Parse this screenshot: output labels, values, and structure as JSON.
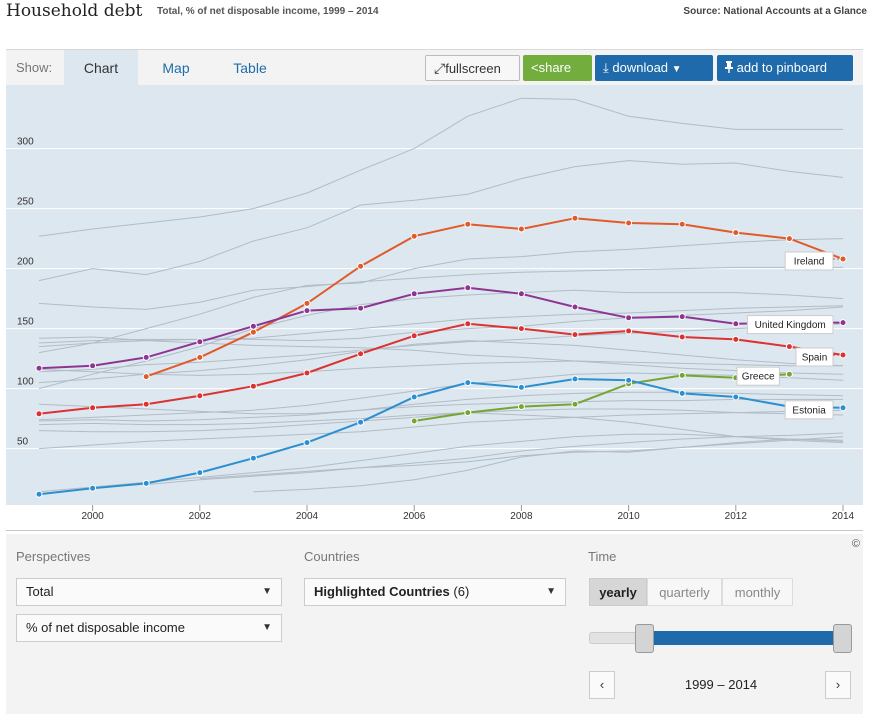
{
  "header": {
    "title": "Household debt",
    "subtitle": "Total, % of net disposable income, 1999 – 2014",
    "source": "Source: National Accounts at a Glance"
  },
  "toolbar": {
    "show_label": "Show:",
    "tabs": [
      "Chart",
      "Map",
      "Table"
    ],
    "active_tab": "Chart",
    "fullscreen_label": "fullscreen",
    "share_label": "share",
    "download_label": "download",
    "pinboard_label": "add to pinboard"
  },
  "chart_data": {
    "type": "line",
    "xlim": [
      1999,
      2014
    ],
    "ylim": [
      3,
      353
    ],
    "x_ticks": [
      2000,
      2002,
      2004,
      2006,
      2008,
      2010,
      2012,
      2014
    ],
    "y_ticks": [
      50,
      100,
      150,
      200,
      250,
      300
    ],
    "grid": true,
    "series": [
      {
        "name": "Ireland",
        "color": "#e05a2a",
        "x": [
          2001,
          2002,
          2003,
          2004,
          2005,
          2006,
          2007,
          2008,
          2009,
          2010,
          2011,
          2012,
          2013,
          2014
        ],
        "values": [
          110,
          126,
          147,
          171,
          202,
          227,
          237,
          233,
          242,
          238,
          237,
          230,
          225,
          208
        ]
      },
      {
        "name": "United Kingdom",
        "color": "#8e3593",
        "x": [
          1999,
          2000,
          2001,
          2002,
          2003,
          2004,
          2005,
          2006,
          2007,
          2008,
          2009,
          2010,
          2011,
          2012,
          2013,
          2014
        ],
        "values": [
          117,
          119,
          126,
          139,
          152,
          165,
          167,
          179,
          184,
          179,
          168,
          159,
          160,
          154,
          155,
          155
        ]
      },
      {
        "name": "Spain",
        "color": "#dc3232",
        "x": [
          1999,
          2000,
          2001,
          2002,
          2003,
          2004,
          2005,
          2006,
          2007,
          2008,
          2009,
          2010,
          2011,
          2012,
          2013,
          2014
        ],
        "values": [
          79,
          84,
          87,
          94,
          102,
          113,
          129,
          144,
          154,
          150,
          145,
          148,
          143,
          141,
          135,
          128
        ]
      },
      {
        "name": "Greece",
        "color": "#77a534",
        "x": [
          2006,
          2007,
          2008,
          2009,
          2010,
          2011,
          2012,
          2013
        ],
        "values": [
          73,
          80,
          85,
          87,
          104,
          111,
          109,
          112
        ]
      },
      {
        "name": "Estonia",
        "color": "#2b8fd0",
        "x": [
          1999,
          2000,
          2001,
          2002,
          2003,
          2004,
          2005,
          2006,
          2007,
          2008,
          2009,
          2010,
          2011,
          2012,
          2013,
          2014
        ],
        "values": [
          12,
          17,
          21,
          30,
          42,
          55,
          72,
          93,
          105,
          101,
          108,
          107,
          96,
          93,
          85,
          84
        ]
      }
    ],
    "background_series": [
      {
        "x": [
          1999,
          2000,
          2001,
          2002,
          2003,
          2004,
          2005,
          2006,
          2007,
          2008,
          2009,
          2010,
          2011,
          2012,
          2013,
          2014
        ],
        "values": [
          227,
          233,
          238,
          243,
          250,
          263,
          282,
          300,
          327,
          342,
          341,
          327,
          321,
          316,
          316,
          316
        ]
      },
      {
        "x": [
          1999,
          2000,
          2001,
          2002,
          2003,
          2004,
          2005,
          2006,
          2007,
          2008,
          2009,
          2010,
          2011,
          2012,
          2013,
          2014
        ],
        "values": [
          190,
          200,
          195,
          206,
          223,
          234,
          253,
          257,
          262,
          275,
          285,
          290,
          287,
          288,
          281,
          276
        ]
      },
      {
        "x": [
          1999,
          2000,
          2001,
          2002,
          2003,
          2004,
          2005,
          2006,
          2007,
          2008,
          2009,
          2010,
          2011,
          2012,
          2013,
          2014
        ],
        "values": [
          130,
          138,
          150,
          162,
          176,
          186,
          188,
          200,
          208,
          210,
          214,
          216,
          219,
          222,
          224,
          225
        ]
      },
      {
        "x": [
          1999,
          2000,
          2001,
          2002,
          2003,
          2004,
          2005,
          2006,
          2007,
          2008,
          2009,
          2010,
          2011,
          2012,
          2013,
          2014
        ],
        "values": [
          171,
          168,
          166,
          172,
          182,
          185,
          189,
          192,
          195,
          197,
          198,
          199,
          200,
          201,
          201,
          201
        ]
      },
      {
        "x": [
          1999,
          2000,
          2001,
          2002,
          2003,
          2004,
          2005,
          2006,
          2007,
          2008,
          2009,
          2010,
          2011,
          2012,
          2013,
          2014
        ],
        "values": [
          100,
          112,
          123,
          135,
          150,
          161,
          170,
          175,
          178,
          180,
          182,
          180,
          180,
          180,
          178,
          175
        ]
      },
      {
        "x": [
          1999,
          2000,
          2001,
          2002,
          2003,
          2004,
          2005,
          2006,
          2007,
          2008,
          2009,
          2010,
          2011,
          2012,
          2013,
          2014
        ],
        "values": [
          138,
          140,
          141,
          141,
          142,
          146,
          150,
          154,
          158,
          160,
          162,
          163,
          165,
          167,
          168,
          169
        ]
      },
      {
        "x": [
          1999,
          2000,
          2001,
          2002,
          2003,
          2004,
          2005,
          2006,
          2007,
          2008,
          2009,
          2010,
          2011,
          2012,
          2013,
          2014
        ],
        "values": [
          135,
          138,
          140,
          141,
          141,
          140,
          142,
          147,
          150,
          152,
          156,
          159,
          161,
          163,
          165,
          168
        ]
      },
      {
        "x": [
          1999,
          2000,
          2001,
          2002,
          2003,
          2004,
          2005,
          2006,
          2007,
          2008,
          2009,
          2010,
          2011,
          2012,
          2013,
          2014
        ],
        "values": [
          142,
          143,
          140,
          138,
          136,
          135,
          134,
          132,
          128,
          126,
          123,
          120,
          117,
          115,
          113,
          112
        ]
      },
      {
        "x": [
          1999,
          2000,
          2001,
          2002,
          2003,
          2004,
          2005,
          2006,
          2007,
          2008,
          2009,
          2010,
          2011,
          2012,
          2013,
          2014
        ],
        "values": [
          114,
          116,
          120,
          122,
          125,
          128,
          132,
          136,
          139,
          141,
          144,
          146,
          148,
          150,
          152,
          154
        ]
      },
      {
        "x": [
          1999,
          2000,
          2001,
          2002,
          2003,
          2004,
          2005,
          2006,
          2007,
          2008,
          2009,
          2010,
          2011,
          2012,
          2013,
          2014
        ],
        "values": [
          105,
          108,
          112,
          115,
          119,
          124,
          131,
          137,
          140,
          138,
          136,
          132,
          128,
          124,
          121,
          119
        ]
      },
      {
        "x": [
          1999,
          2000,
          2001,
          2002,
          2003,
          2004,
          2005,
          2006,
          2007,
          2008,
          2009,
          2010,
          2011,
          2012,
          2013,
          2014
        ],
        "values": [
          116,
          114,
          112,
          111,
          112,
          114,
          117,
          119,
          121,
          122,
          123,
          122,
          121,
          120,
          119,
          119
        ]
      },
      {
        "x": [
          1999,
          2000,
          2001,
          2002,
          2003,
          2004,
          2005,
          2006,
          2007,
          2008,
          2009,
          2010,
          2011,
          2012,
          2013,
          2014
        ],
        "values": [
          74,
          76,
          78,
          80,
          82,
          86,
          92,
          98,
          104,
          108,
          112,
          113,
          112,
          111,
          109,
          107
        ]
      },
      {
        "x": [
          1999,
          2000,
          2001,
          2002,
          2003,
          2004,
          2005,
          2006,
          2007,
          2008,
          2009,
          2010,
          2011,
          2012,
          2013,
          2014
        ],
        "values": [
          73,
          74,
          73,
          74,
          76,
          78,
          82,
          87,
          91,
          94,
          96,
          97,
          97,
          96,
          95,
          94
        ]
      },
      {
        "x": [
          1999,
          2000,
          2001,
          2002,
          2003,
          2004,
          2005,
          2006,
          2007,
          2008,
          2009,
          2010,
          2011,
          2012,
          2013,
          2014
        ],
        "values": [
          87,
          85,
          83,
          81,
          79,
          79,
          82,
          85,
          87,
          88,
          89,
          90,
          90,
          91,
          91,
          91
        ]
      },
      {
        "x": [
          1999,
          2000,
          2001,
          2002,
          2003,
          2004,
          2005,
          2006,
          2007,
          2008,
          2009,
          2010,
          2011,
          2012,
          2013,
          2014
        ],
        "values": [
          70,
          71,
          70,
          70,
          71,
          73,
          75,
          78,
          80,
          82,
          83,
          83,
          82,
          80,
          79,
          78
        ]
      },
      {
        "x": [
          1999,
          2000,
          2001,
          2002,
          2003,
          2004,
          2005,
          2006,
          2007,
          2008,
          2009,
          2010,
          2011,
          2012,
          2013,
          2014
        ],
        "values": [
          50,
          53,
          56,
          58,
          60,
          62,
          64,
          68,
          72,
          74,
          76,
          78,
          79,
          80,
          81,
          82
        ]
      },
      {
        "x": [
          1999,
          2000,
          2001,
          2002,
          2003,
          2004,
          2005,
          2006,
          2007,
          2008,
          2009,
          2010,
          2011,
          2012,
          2013,
          2014
        ],
        "values": [
          14,
          18,
          22,
          26,
          30,
          34,
          40,
          46,
          52,
          56,
          60,
          62,
          62,
          60,
          58,
          56
        ]
      },
      {
        "x": [
          2001,
          2002,
          2003,
          2004,
          2005,
          2006,
          2007,
          2008,
          2009,
          2010,
          2011,
          2012,
          2013,
          2014
        ],
        "values": [
          20,
          24,
          27,
          30,
          34,
          38,
          42,
          48,
          52,
          55,
          58,
          60,
          61,
          63
        ]
      },
      {
        "x": [
          2002,
          2003,
          2004,
          2005,
          2006,
          2007,
          2008,
          2009,
          2010,
          2011,
          2012,
          2013,
          2014
        ],
        "values": [
          25,
          28,
          31,
          34,
          36,
          39,
          44,
          47,
          48,
          51,
          54,
          57,
          60
        ]
      },
      {
        "x": [
          2003,
          2004,
          2005,
          2006,
          2007,
          2008,
          2009,
          2010,
          2011,
          2012,
          2013,
          2014
        ],
        "values": [
          14,
          16,
          19,
          24,
          32,
          43,
          48,
          47,
          51,
          55,
          58,
          57
        ]
      },
      {
        "x": [
          1999,
          2000,
          2001,
          2002,
          2003,
          2004,
          2005,
          2006,
          2007,
          2008,
          2009,
          2010,
          2011,
          2012,
          2013,
          2014
        ],
        "values": [
          65,
          64,
          64,
          65,
          67,
          70,
          73,
          76,
          80,
          78,
          76,
          72,
          66,
          60,
          57,
          55
        ]
      }
    ]
  },
  "controls": {
    "perspectives_head": "Perspectives",
    "countries_head": "Countries",
    "time_head": "Time",
    "copyright": "©",
    "select_total": "Total",
    "select_unit": "% of net disposable income",
    "countries_select_main": "Highlighted Countries",
    "countries_select_count": "(6)",
    "time_tabs": [
      "yearly",
      "quarterly",
      "monthly"
    ],
    "active_time_tab": "yearly",
    "range_label": "1999 – 2014",
    "prev_glyph": "‹",
    "next_glyph": "›",
    "caret_glyph": "▼",
    "fullscreen_glyph": "⤢",
    "share_glyph": "<",
    "download_glyph": "⤓",
    "pinboard_glyph": "📌"
  }
}
